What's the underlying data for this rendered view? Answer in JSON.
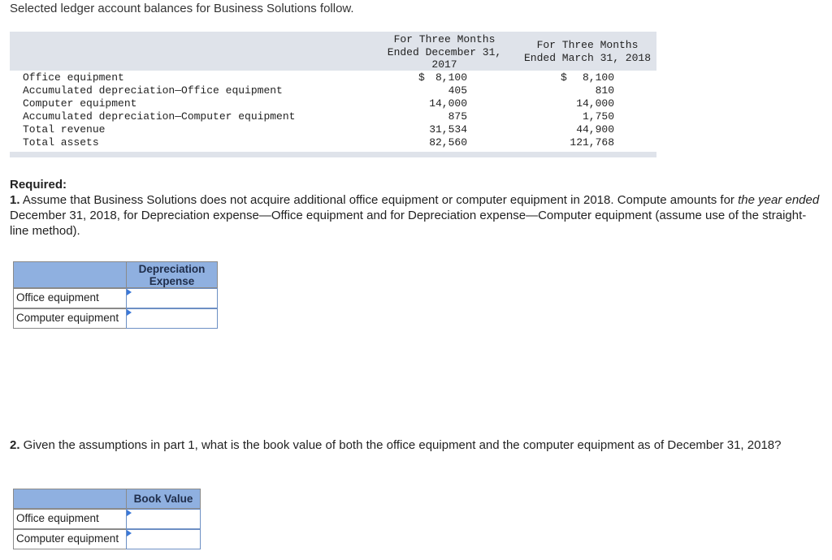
{
  "intro": "Selected ledger account balances for Business Solutions follow.",
  "ledger": {
    "col1_header": [
      "For Three Months",
      "Ended December 31,",
      "2017"
    ],
    "col2_header": [
      "For Three Months",
      "Ended March 31, 2018"
    ],
    "rows": [
      {
        "account": "Office equipment",
        "v1": "8,100",
        "v2": "8,100",
        "dollar": "$"
      },
      {
        "account": "Accumulated depreciation—Office equipment",
        "v1": "405",
        "v2": "810"
      },
      {
        "account": "Computer equipment",
        "v1": "14,000",
        "v2": "14,000"
      },
      {
        "account": "Accumulated depreciation—Computer equipment",
        "v1": "875",
        "v2": "1,750"
      },
      {
        "account": "Total revenue",
        "v1": "31,534",
        "v2": "44,900"
      },
      {
        "account": "Total assets",
        "v1": "82,560",
        "v2": "121,768"
      }
    ]
  },
  "required_label": "Required:",
  "q1": {
    "number": "1.",
    "text_a": " Assume that Business Solutions does not acquire additional office equipment or computer equipment in 2018. Compute amounts for ",
    "text_italic": "the year ended",
    "text_b": " December 31, 2018, for Depreciation expense—Office equipment and for Depreciation expense—Computer equipment (assume use of the straight-line method).",
    "header_lines": [
      "Depreciation",
      "Expense"
    ],
    "rows": [
      "Office equipment",
      "Computer equipment"
    ],
    "values": [
      "",
      ""
    ]
  },
  "q2": {
    "number": "2.",
    "text": " Given the assumptions in part 1, what is the book value of both the office equipment and the computer equipment as of December 31, 2018?",
    "header": "Book Value",
    "rows": [
      "Office equipment",
      "Computer equipment"
    ],
    "values": [
      "",
      ""
    ]
  }
}
